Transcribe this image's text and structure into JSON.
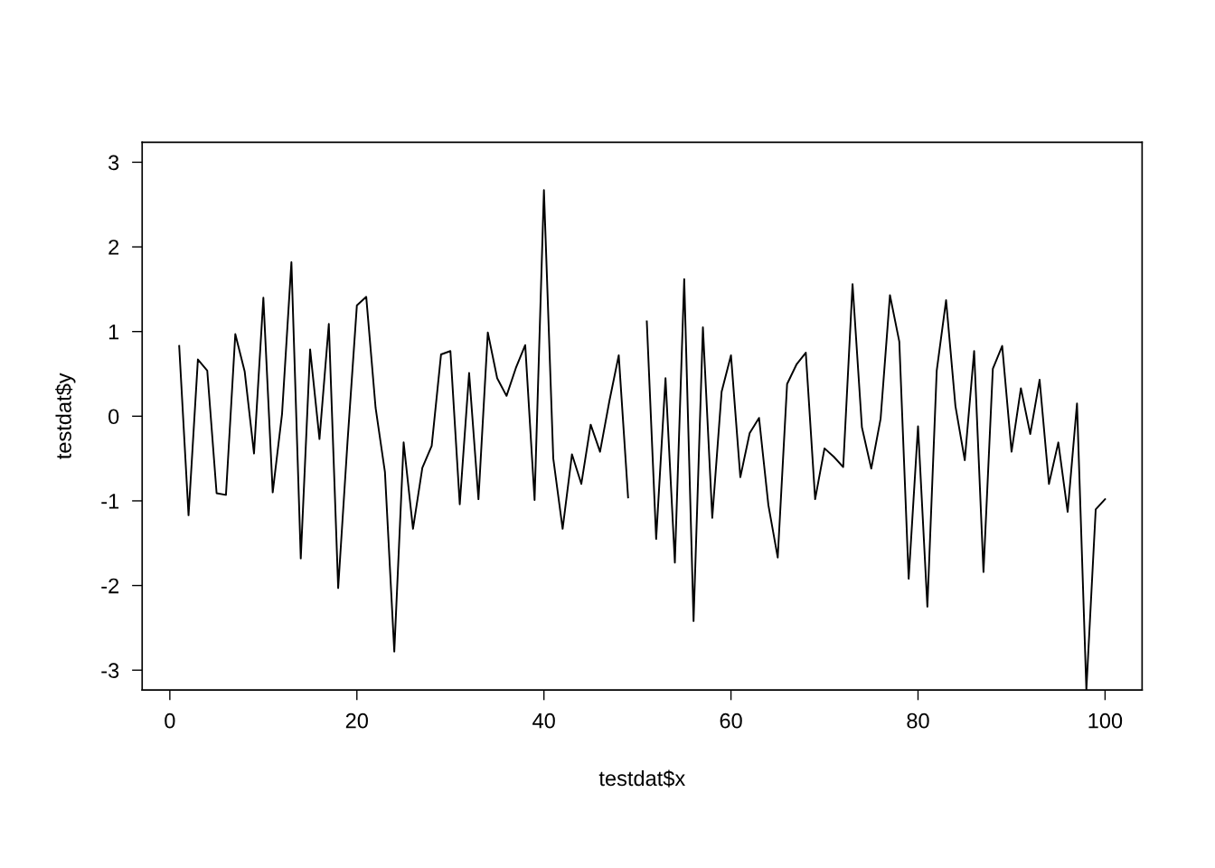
{
  "chart_data": {
    "type": "line",
    "xlabel": "testdat$x",
    "ylabel": "testdat$y",
    "x": [
      1,
      2,
      3,
      4,
      5,
      6,
      7,
      8,
      9,
      10,
      11,
      12,
      13,
      14,
      15,
      16,
      17,
      18,
      19,
      20,
      21,
      22,
      23,
      24,
      25,
      26,
      27,
      28,
      29,
      30,
      31,
      32,
      33,
      34,
      35,
      36,
      37,
      38,
      39,
      40,
      41,
      42,
      43,
      44,
      45,
      46,
      47,
      48,
      49,
      50,
      51,
      52,
      53,
      54,
      55,
      56,
      57,
      58,
      59,
      60,
      61,
      62,
      63,
      64,
      65,
      66,
      67,
      68,
      69,
      70,
      71,
      72,
      73,
      74,
      75,
      76,
      77,
      78,
      79,
      80,
      81,
      82,
      83,
      84,
      85,
      86,
      87,
      88,
      89,
      90,
      91,
      92,
      93,
      94,
      95,
      96,
      97,
      98,
      99,
      100
    ],
    "series": [
      {
        "color": "#000000",
        "values": [
          0.83,
          -1.17,
          0.67,
          0.54,
          -0.91,
          -0.93,
          0.97,
          0.53,
          -0.44,
          1.4,
          -0.9,
          0.03,
          1.82,
          -1.68,
          0.79,
          -0.27,
          1.09,
          -2.03,
          -0.3,
          1.31,
          1.41,
          0.1,
          -0.66,
          -2.78,
          -0.31,
          -1.33,
          -0.61,
          -0.35,
          0.73,
          0.77,
          -1.04,
          0.51,
          -0.98,
          0.99,
          0.45,
          0.24,
          0.57,
          0.84,
          -0.99,
          2.67,
          -0.5,
          -1.33,
          -0.45,
          -0.8,
          -0.1,
          -0.42,
          0.18,
          0.72,
          -0.96,
          null,
          1.12,
          -1.45,
          0.45,
          -1.73,
          1.62,
          -2.42,
          1.05,
          -1.2,
          0.29,
          0.72,
          -0.72,
          -0.2,
          -0.02,
          -1.05,
          -1.67,
          0.38,
          0.61,
          0.75,
          -0.98,
          -0.38,
          -0.48,
          -0.6,
          1.56,
          -0.13,
          -0.62,
          -0.03,
          1.43,
          0.88,
          -1.92,
          -0.12,
          -2.25,
          0.54,
          1.37,
          0.12,
          -0.52,
          0.77,
          -1.84,
          0.56,
          0.83,
          -0.42,
          0.33,
          -0.21,
          0.43,
          -0.8,
          -0.31,
          -1.13,
          0.15,
          -3.23,
          -1.1,
          -0.98
        ]
      }
    ],
    "xlim": [
      -2.96,
      103.96
    ],
    "ylim": [
      -3.235,
      3.235
    ],
    "xticks": [
      0,
      20,
      40,
      60,
      80,
      100
    ],
    "yticks": [
      {
        "value": -3,
        "label": "-3"
      },
      {
        "value": -2,
        "label": "-2"
      },
      {
        "value": -1,
        "label": "-1"
      },
      0,
      1,
      2,
      3
    ],
    "grid": false,
    "legend": false,
    "marker": "none",
    "line_style": "solid"
  }
}
